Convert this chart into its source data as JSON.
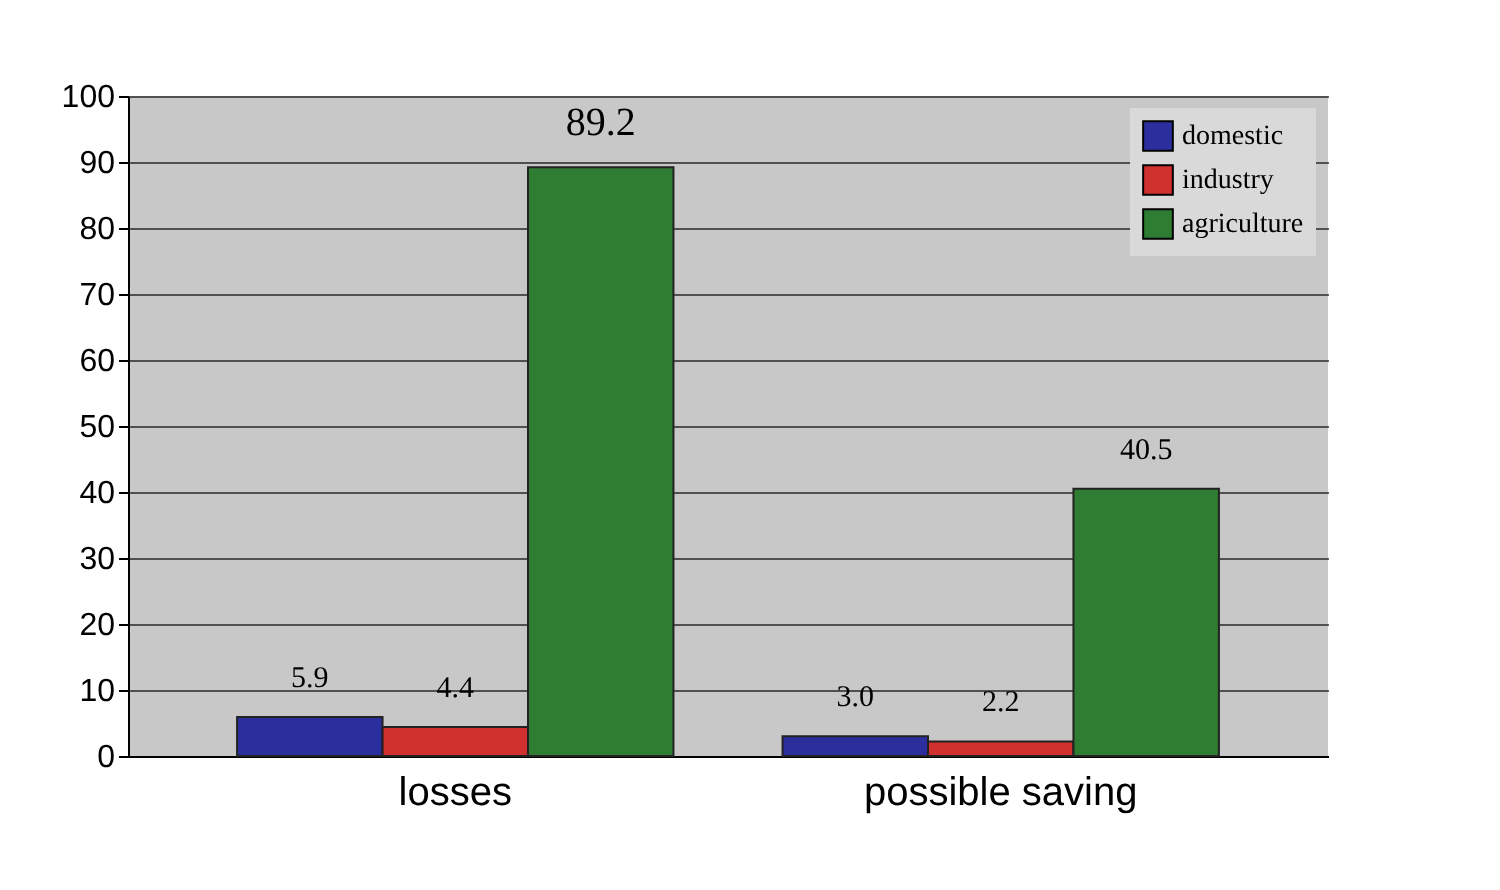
{
  "chart_data": {
    "type": "bar",
    "categories": [
      "losses",
      "possible saving"
    ],
    "series": [
      {
        "name": "domestic",
        "color": "#2b2f9e",
        "values": [
          5.9,
          3.0
        ],
        "value_labels": [
          "5.9",
          "3.0"
        ]
      },
      {
        "name": "industry",
        "color": "#d0302e",
        "values": [
          4.4,
          2.2
        ],
        "value_labels": [
          "4.4",
          "2.2"
        ]
      },
      {
        "name": "agriculture",
        "color": "#2e7d32",
        "values": [
          89.2,
          40.5
        ],
        "value_labels": [
          "89.2",
          "40.5"
        ]
      }
    ],
    "ylim": [
      0,
      100
    ],
    "yticks": [
      0,
      10,
      20,
      30,
      40,
      50,
      60,
      70,
      80,
      90,
      100
    ],
    "grid": "y",
    "legend": "top right"
  }
}
